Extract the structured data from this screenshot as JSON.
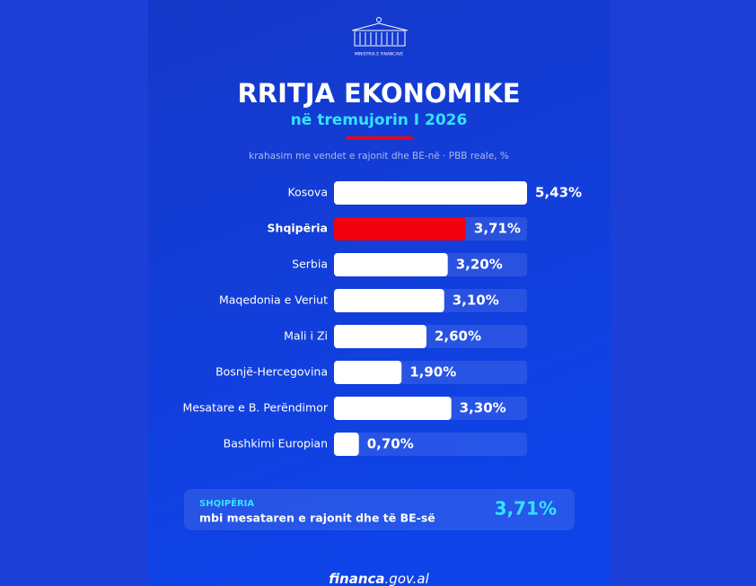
{
  "logo_text": "MINISTRIA E FINANCAVE",
  "chart_data": {
    "type": "bar",
    "orientation": "horizontal",
    "title": "RRITJA EKONOMIKE",
    "subtitle": "në tremujorin I 2026",
    "caption": "krahasim me vendet e rajonit dhe BE-në · PBB reale, %",
    "categories": [
      "Kosova",
      "Shqipëria",
      "Serbia",
      "Maqedonia e Veriut",
      "Mali i Zi",
      "Bosnjë-Hercegovina",
      "Mesatare e B. Perëndimor",
      "Bashkimi Europian"
    ],
    "values": [
      5.43,
      3.71,
      3.2,
      3.1,
      2.6,
      1.9,
      3.3,
      0.7
    ],
    "value_labels": [
      "5,43%",
      "3,71%",
      "3,20%",
      "3,10%",
      "2,60%",
      "1,90%",
      "3,30%",
      "0,70%"
    ],
    "color": "#ffffff",
    "colors": [
      "#ffffff",
      "#f2000f",
      "#ffffff",
      "#ffffff",
      "#ffffff",
      "#ffffff",
      "#ffffff",
      "#ffffff"
    ],
    "xlim": [
      0,
      5.43
    ]
  },
  "callout": {
    "label": "SHQIPËRIA",
    "text": "mbi mesataren e rajonit dhe të BE-së",
    "value_label": "3,71%"
  },
  "footer": {
    "brand": "financa",
    "domain": ".gov.al"
  }
}
